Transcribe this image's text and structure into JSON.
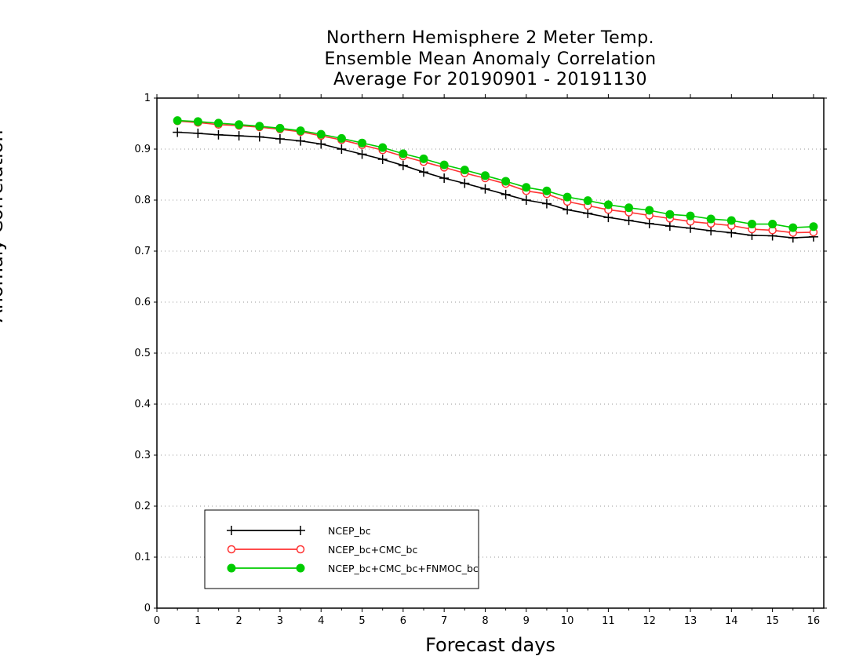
{
  "chart_data": {
    "type": "line",
    "title_lines": [
      "Northern Hemisphere 2 Meter Temp.",
      "Ensemble Mean Anomaly Correlation",
      "Average For 20190901 - 20191130"
    ],
    "xlabel": "Forecast days",
    "ylabel": "Anomaly Correlation",
    "xlim": [
      0,
      16.25
    ],
    "ylim": [
      0,
      1
    ],
    "x_ticks": [
      0,
      1,
      2,
      3,
      4,
      5,
      6,
      7,
      8,
      9,
      10,
      11,
      12,
      13,
      14,
      15,
      16
    ],
    "y_ticks": [
      0,
      0.1,
      0.2,
      0.3,
      0.4,
      0.5,
      0.6,
      0.7,
      0.8,
      0.9,
      1
    ],
    "grid": "horizontal dotted",
    "legend_position": "bottom-left",
    "x": [
      0.5,
      1,
      1.5,
      2,
      2.5,
      3,
      3.5,
      4,
      4.5,
      5,
      5.5,
      6,
      6.5,
      7,
      7.5,
      8,
      8.5,
      9,
      9.5,
      10,
      10.5,
      11,
      11.5,
      12,
      12.5,
      13,
      13.5,
      14,
      14.5,
      15,
      15.5,
      16
    ],
    "series": [
      {
        "name": "NCEP_bc",
        "color": "#000000",
        "marker": "plus",
        "values": [
          0.933,
          0.931,
          0.928,
          0.926,
          0.924,
          0.92,
          0.916,
          0.91,
          0.9,
          0.89,
          0.88,
          0.868,
          0.855,
          0.843,
          0.833,
          0.822,
          0.811,
          0.8,
          0.793,
          0.781,
          0.774,
          0.766,
          0.76,
          0.754,
          0.749,
          0.745,
          0.74,
          0.736,
          0.731,
          0.73,
          0.726,
          0.728
        ]
      },
      {
        "name": "NCEP_bc+CMC_bc",
        "color": "#ff3333",
        "marker": "open-circle",
        "values": [
          0.955,
          0.952,
          0.948,
          0.946,
          0.943,
          0.939,
          0.934,
          0.926,
          0.918,
          0.908,
          0.898,
          0.886,
          0.875,
          0.864,
          0.853,
          0.843,
          0.832,
          0.818,
          0.812,
          0.797,
          0.789,
          0.781,
          0.776,
          0.77,
          0.764,
          0.758,
          0.754,
          0.75,
          0.743,
          0.741,
          0.736,
          0.737
        ]
      },
      {
        "name": "NCEP_bc+CMC_bc+FNMOC_bc",
        "color": "#00cc00",
        "marker": "filled-circle",
        "values": [
          0.956,
          0.954,
          0.951,
          0.948,
          0.945,
          0.941,
          0.936,
          0.929,
          0.921,
          0.912,
          0.903,
          0.891,
          0.881,
          0.869,
          0.859,
          0.848,
          0.837,
          0.825,
          0.818,
          0.806,
          0.799,
          0.791,
          0.785,
          0.78,
          0.772,
          0.769,
          0.763,
          0.76,
          0.753,
          0.753,
          0.746,
          0.748
        ]
      }
    ]
  }
}
